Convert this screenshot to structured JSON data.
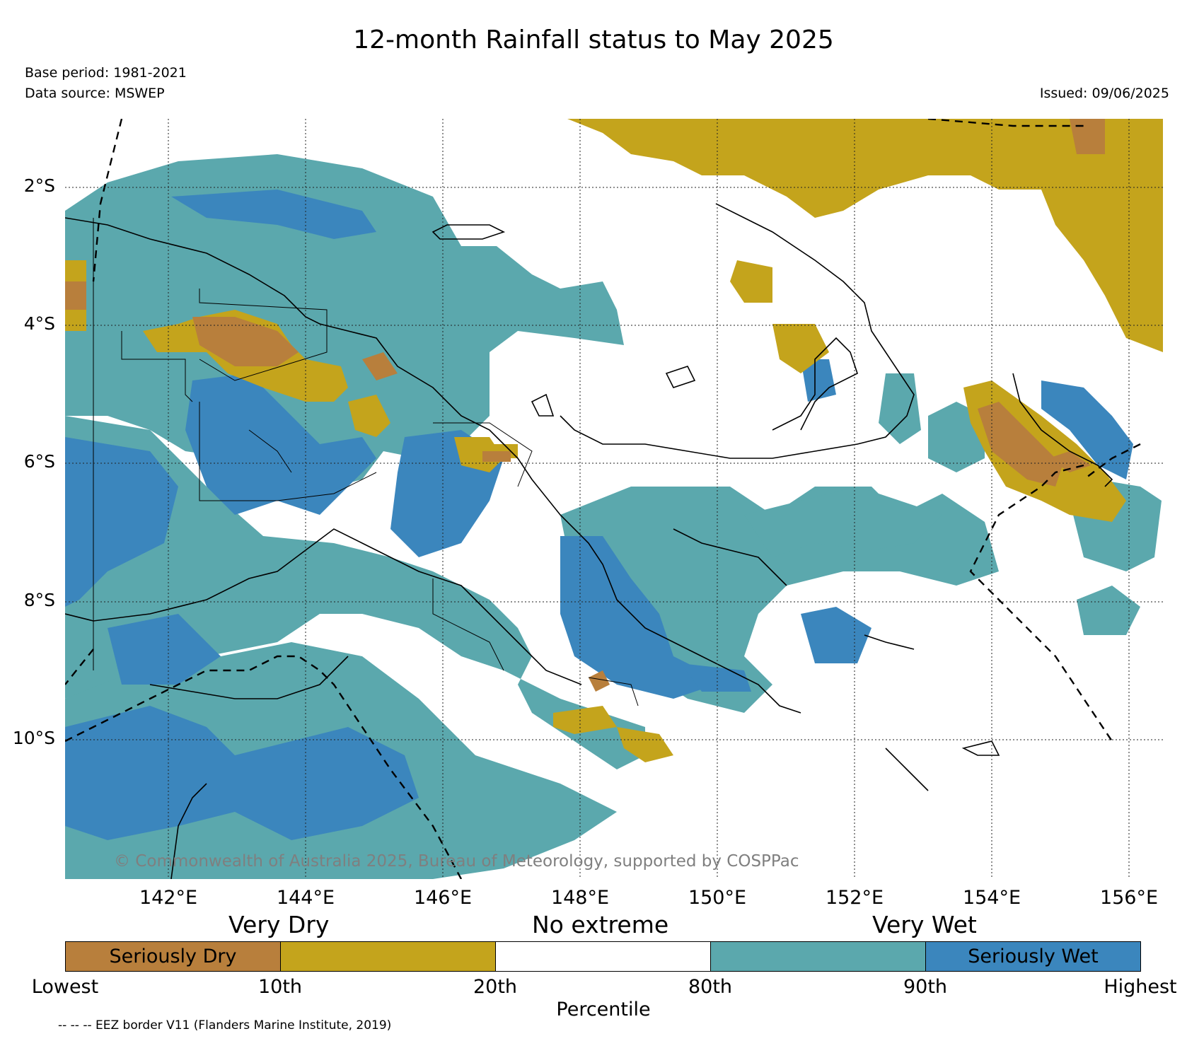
{
  "title": "12-month Rainfall status to May 2025",
  "base_period": "Base period: 1981-2021",
  "data_source": "Data source: MSWEP",
  "issued": "Issued: 09/06/2025",
  "copyright": "© Commonwealth of Australia 2025, Bureau of Meteorology, supported by COSPPac",
  "lat_labels": [
    "2°S",
    "4°S",
    "6°S",
    "8°S",
    "10°S"
  ],
  "lon_labels": [
    "142°E",
    "144°E",
    "146°E",
    "148°E",
    "150°E",
    "152°E",
    "154°E",
    "156°E"
  ],
  "categories": {
    "dry": "Very Dry",
    "none": "No extreme",
    "wet": "Very Wet"
  },
  "legend": {
    "segments": [
      {
        "label": "Seriously Dry",
        "color": "#b87f3c"
      },
      {
        "label": "",
        "color": "#c4a41c"
      },
      {
        "label": "",
        "color": "#ffffff"
      },
      {
        "label": "",
        "color": "#5ba8ad"
      },
      {
        "label": "Seriously Wet",
        "color": "#3b86bd"
      }
    ],
    "ticks": [
      "Lowest",
      "10th",
      "20th",
      "80th",
      "90th",
      "Highest"
    ],
    "xlabel": "Percentile"
  },
  "eez_note": "-- -- -- EEZ border V11 (Flanders Marine Institute, 2019)"
}
